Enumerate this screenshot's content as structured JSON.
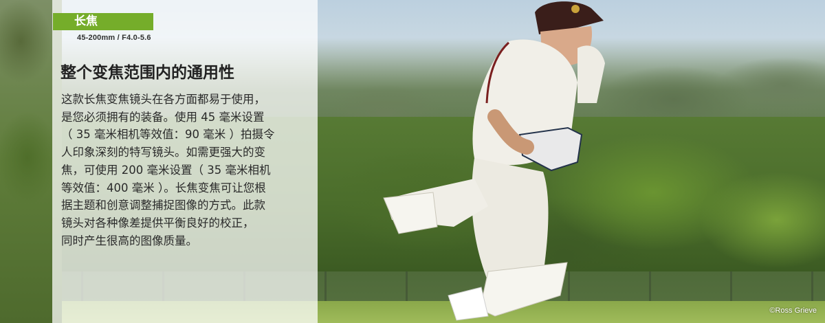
{
  "badge": {
    "label": "长焦"
  },
  "lens_spec": "45-200mm / F4.0-5.6",
  "heading": "整个变焦范围内的通用性",
  "body_lines": [
    "这款长焦变焦镜头在各方面都易于使用，",
    "是您必须拥有的装备。使用 45 毫米设置",
    "（ 35 毫米相机等效值：90 毫米 ）拍摄令",
    "人印象深刻的特写镜头。如需更强大的变",
    "焦，可使用 200 毫米设置（ 35 毫米相机",
    "等效值：400 毫米 ）。长焦变焦可让您根",
    "据主题和创意调整捕捉图像的方式。此款",
    "镜头对各种像差提供平衡良好的校正，",
    "同时产生很高的图像质量。"
  ],
  "photo_credit": "©Ross Grieve",
  "colors": {
    "badge_green": "#75ad2a",
    "panel_overlay": "rgba(255,255,255,0.74)",
    "heading_text": "#222222",
    "body_text": "#2a2a2a"
  }
}
